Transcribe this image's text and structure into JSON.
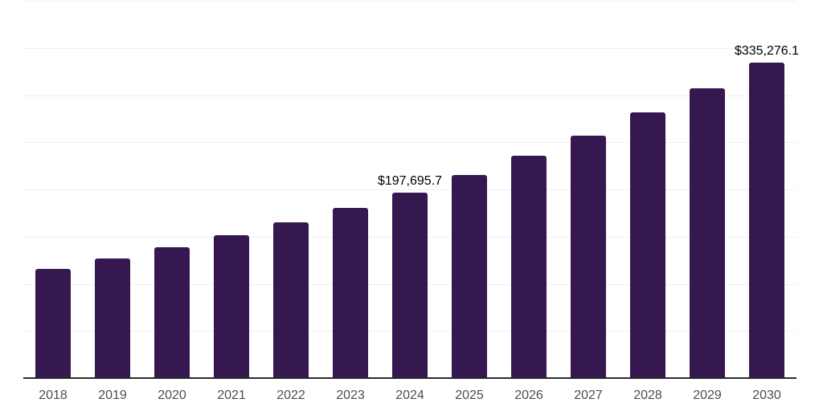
{
  "chart_data": {
    "type": "bar",
    "title": "",
    "xlabel": "",
    "ylabel": "",
    "categories": [
      "2018",
      "2019",
      "2020",
      "2021",
      "2022",
      "2023",
      "2024",
      "2025",
      "2026",
      "2027",
      "2028",
      "2029",
      "2030"
    ],
    "values": [
      116900,
      127900,
      139600,
      152300,
      166200,
      181200,
      197695.7,
      216600,
      236500,
      258200,
      282400,
      307900,
      335276.1
    ],
    "data_labels": [
      "",
      "",
      "",
      "",
      "",
      "",
      "$197,695.7",
      "",
      "",
      "",
      "",
      "",
      "$335,276.1"
    ],
    "ylim": [
      0,
      400000
    ],
    "grid_step": 50000,
    "grid": true,
    "legend": false
  },
  "colors": {
    "bar": "#34184F",
    "gridline": "#f0f0f0",
    "axis": "#2b2b2b",
    "tick_label": "#4d4d4d",
    "value_label": "#000000",
    "background": "#ffffff"
  }
}
